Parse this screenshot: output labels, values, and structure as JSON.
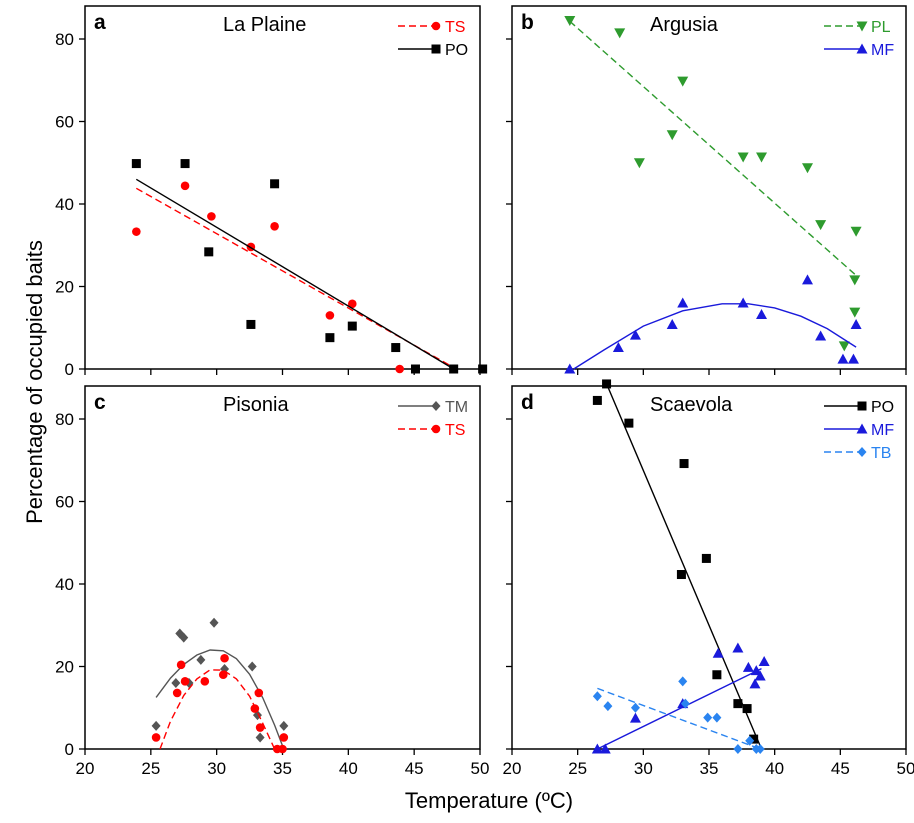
{
  "figure": {
    "ylabel": "Percentage  of  occupied  baits",
    "xlabel": "Temperature  (ºC)"
  },
  "chart_data": [
    {
      "type": "scatter",
      "panel": "a",
      "title": "La Plaine",
      "xlim": [
        20,
        50
      ],
      "ylim": [
        0,
        88
      ],
      "xticks": [
        20,
        25,
        30,
        35,
        40,
        45,
        50
      ],
      "yticks": [
        0,
        20,
        40,
        60,
        80
      ],
      "legend_position": "top-right",
      "series": [
        {
          "name": "TS",
          "color": "#ff0000",
          "marker": "circle",
          "fit": "linear",
          "line_style": "dashed",
          "x": [
            23.9,
            27.6,
            29.6,
            32.6,
            34.4,
            38.6,
            40.3,
            43.9
          ],
          "y": [
            33.3,
            44.4,
            37.0,
            29.6,
            34.6,
            13.0,
            15.8,
            0
          ],
          "fit_line": [
            [
              23.9,
              43.8
            ],
            [
              48.2,
              0
            ]
          ]
        },
        {
          "name": "PO",
          "color": "#000000",
          "marker": "square",
          "fit": "linear",
          "line_style": "solid",
          "x": [
            23.9,
            27.6,
            29.4,
            32.6,
            34.4,
            38.6,
            40.3,
            43.6,
            45.1,
            48.0,
            50.2
          ],
          "y": [
            49.8,
            49.8,
            28.4,
            10.8,
            44.9,
            7.6,
            10.4,
            5.2,
            0,
            0,
            0
          ],
          "fit_line": [
            [
              23.9,
              46.0
            ],
            [
              48.0,
              0
            ]
          ]
        }
      ]
    },
    {
      "type": "scatter",
      "panel": "b",
      "title": "Argusia",
      "xlim": [
        20,
        50
      ],
      "ylim": [
        0,
        88
      ],
      "xticks": [
        20,
        25,
        30,
        35,
        40,
        45,
        50
      ],
      "yticks": [
        0,
        20,
        40,
        60,
        80
      ],
      "legend_position": "top-right",
      "series": [
        {
          "name": "PL",
          "color": "#2e9b2e",
          "marker": "triangle-down",
          "fit": "linear",
          "line_style": "dashed",
          "x": [
            24.4,
            28.2,
            29.7,
            32.2,
            33.0,
            37.6,
            39.0,
            42.5,
            43.5,
            45.3,
            46.1,
            46.1,
            46.2
          ],
          "y": [
            84.5,
            81.5,
            50.0,
            56.8,
            69.8,
            51.4,
            51.4,
            48.8,
            35.0,
            5.6,
            13.8,
            21.6,
            33.4
          ],
          "fit_line": [
            [
              24.4,
              84.3
            ],
            [
              46.2,
              22.7
            ]
          ]
        },
        {
          "name": "MF",
          "color": "#1a1adb",
          "marker": "triangle-up",
          "fit": "quadratic",
          "line_style": "solid",
          "x": [
            24.4,
            28.1,
            29.4,
            32.2,
            33.0,
            37.6,
            39.0,
            42.5,
            43.5,
            45.2,
            46.0,
            46.2
          ],
          "y": [
            0,
            5.2,
            8.2,
            10.8,
            16.0,
            16.0,
            13.2,
            21.6,
            8.0,
            2.4,
            2.4,
            10.8
          ],
          "fit_curve": [
            [
              24.7,
              0
            ],
            [
              27.0,
              4.6
            ],
            [
              30.0,
              10.4
            ],
            [
              33.0,
              14.1
            ],
            [
              36.0,
              15.8
            ],
            [
              38.0,
              15.8
            ],
            [
              40.0,
              14.8
            ],
            [
              42.0,
              12.8
            ],
            [
              44.0,
              9.8
            ],
            [
              46.2,
              5.3
            ]
          ]
        }
      ]
    },
    {
      "type": "scatter",
      "panel": "c",
      "title": "Pisonia",
      "xlim": [
        20,
        50
      ],
      "ylim": [
        0,
        88
      ],
      "xticks": [
        20,
        25,
        30,
        35,
        40,
        45,
        50
      ],
      "yticks": [
        0,
        20,
        40,
        60,
        80
      ],
      "legend_position": "top-right",
      "series": [
        {
          "name": "TM",
          "color": "#555555",
          "marker": "diamond",
          "fit": "quadratic",
          "line_style": "solid",
          "x": [
            25.4,
            26.9,
            27.2,
            27.5,
            27.9,
            28.8,
            29.8,
            30.6,
            32.7,
            33.1,
            33.3,
            35.1
          ],
          "y": [
            5.6,
            16.0,
            28.0,
            27.0,
            16.0,
            21.6,
            30.6,
            19.4,
            20.0,
            8.2,
            2.8,
            5.6
          ],
          "fit_curve": [
            [
              25.4,
              12.5
            ],
            [
              26.5,
              17.2
            ],
            [
              27.5,
              20.5
            ],
            [
              28.5,
              22.8
            ],
            [
              29.5,
              24.0
            ],
            [
              30.5,
              23.8
            ],
            [
              31.5,
              21.9
            ],
            [
              32.5,
              18.1
            ],
            [
              33.5,
              12.4
            ],
            [
              34.4,
              5.8
            ],
            [
              35.0,
              0.8
            ]
          ]
        },
        {
          "name": "TS",
          "color": "#ff0000",
          "marker": "circle",
          "fit": "quadratic",
          "line_style": "dashed",
          "x": [
            25.4,
            27.0,
            27.3,
            27.6,
            29.1,
            30.5,
            30.6,
            32.9,
            33.2,
            33.3,
            34.6,
            35.0,
            35.1
          ],
          "y": [
            2.8,
            13.6,
            20.4,
            16.4,
            16.4,
            18.0,
            22.0,
            9.8,
            13.6,
            5.2,
            0,
            0,
            2.8
          ],
          "fit_curve": [
            [
              25.7,
              0
            ],
            [
              26.5,
              6.8
            ],
            [
              27.5,
              13.0
            ],
            [
              28.5,
              17.0
            ],
            [
              29.5,
              19.2
            ],
            [
              30.5,
              19.1
            ],
            [
              31.5,
              17.0
            ],
            [
              32.5,
              12.8
            ],
            [
              33.5,
              6.2
            ],
            [
              34.4,
              0
            ]
          ]
        }
      ]
    },
    {
      "type": "scatter",
      "panel": "d",
      "title": "Scaevola",
      "xlim": [
        20,
        50
      ],
      "ylim": [
        0,
        88
      ],
      "xticks": [
        20,
        25,
        30,
        35,
        40,
        45,
        50
      ],
      "yticks": [
        0,
        20,
        40,
        60,
        80
      ],
      "legend_position": "top-right",
      "series": [
        {
          "name": "PO",
          "color": "#000000",
          "marker": "square",
          "fit": "linear",
          "line_style": "solid",
          "x": [
            26.5,
            27.2,
            28.9,
            32.9,
            33.1,
            34.8,
            35.6,
            37.2,
            37.9,
            38.4
          ],
          "y": [
            84.5,
            88.5,
            79.0,
            42.3,
            69.2,
            46.2,
            18.0,
            11.0,
            9.8,
            2.4
          ],
          "fit_line": [
            [
              27.2,
              88.5
            ],
            [
              39.0,
              0
            ]
          ]
        },
        {
          "name": "MF",
          "color": "#1a1adb",
          "marker": "triangle-up",
          "fit": "linear",
          "line_style": "solid",
          "x": [
            26.5,
            27.1,
            29.4,
            33.0,
            35.7,
            37.2,
            38.0,
            38.5,
            38.6,
            38.9,
            39.2
          ],
          "y": [
            0,
            0,
            7.5,
            11.0,
            23.2,
            24.5,
            19.8,
            15.8,
            19.0,
            17.7,
            21.2
          ],
          "fit_line": [
            [
              26.5,
              0
            ],
            [
              39.0,
              19.5
            ]
          ]
        },
        {
          "name": "TB",
          "color": "#2a84f0",
          "marker": "diamond",
          "fit": "linear",
          "line_style": "dashed",
          "x": [
            26.5,
            27.3,
            29.4,
            33.0,
            33.2,
            34.9,
            35.6,
            37.2,
            38.1,
            38.6,
            38.9
          ],
          "y": [
            12.8,
            10.4,
            10.0,
            16.4,
            11.0,
            7.6,
            7.6,
            0,
            2.0,
            0,
            0
          ],
          "fit_line": [
            [
              26.5,
              14.7
            ],
            [
              38.9,
              0
            ]
          ]
        }
      ]
    }
  ]
}
